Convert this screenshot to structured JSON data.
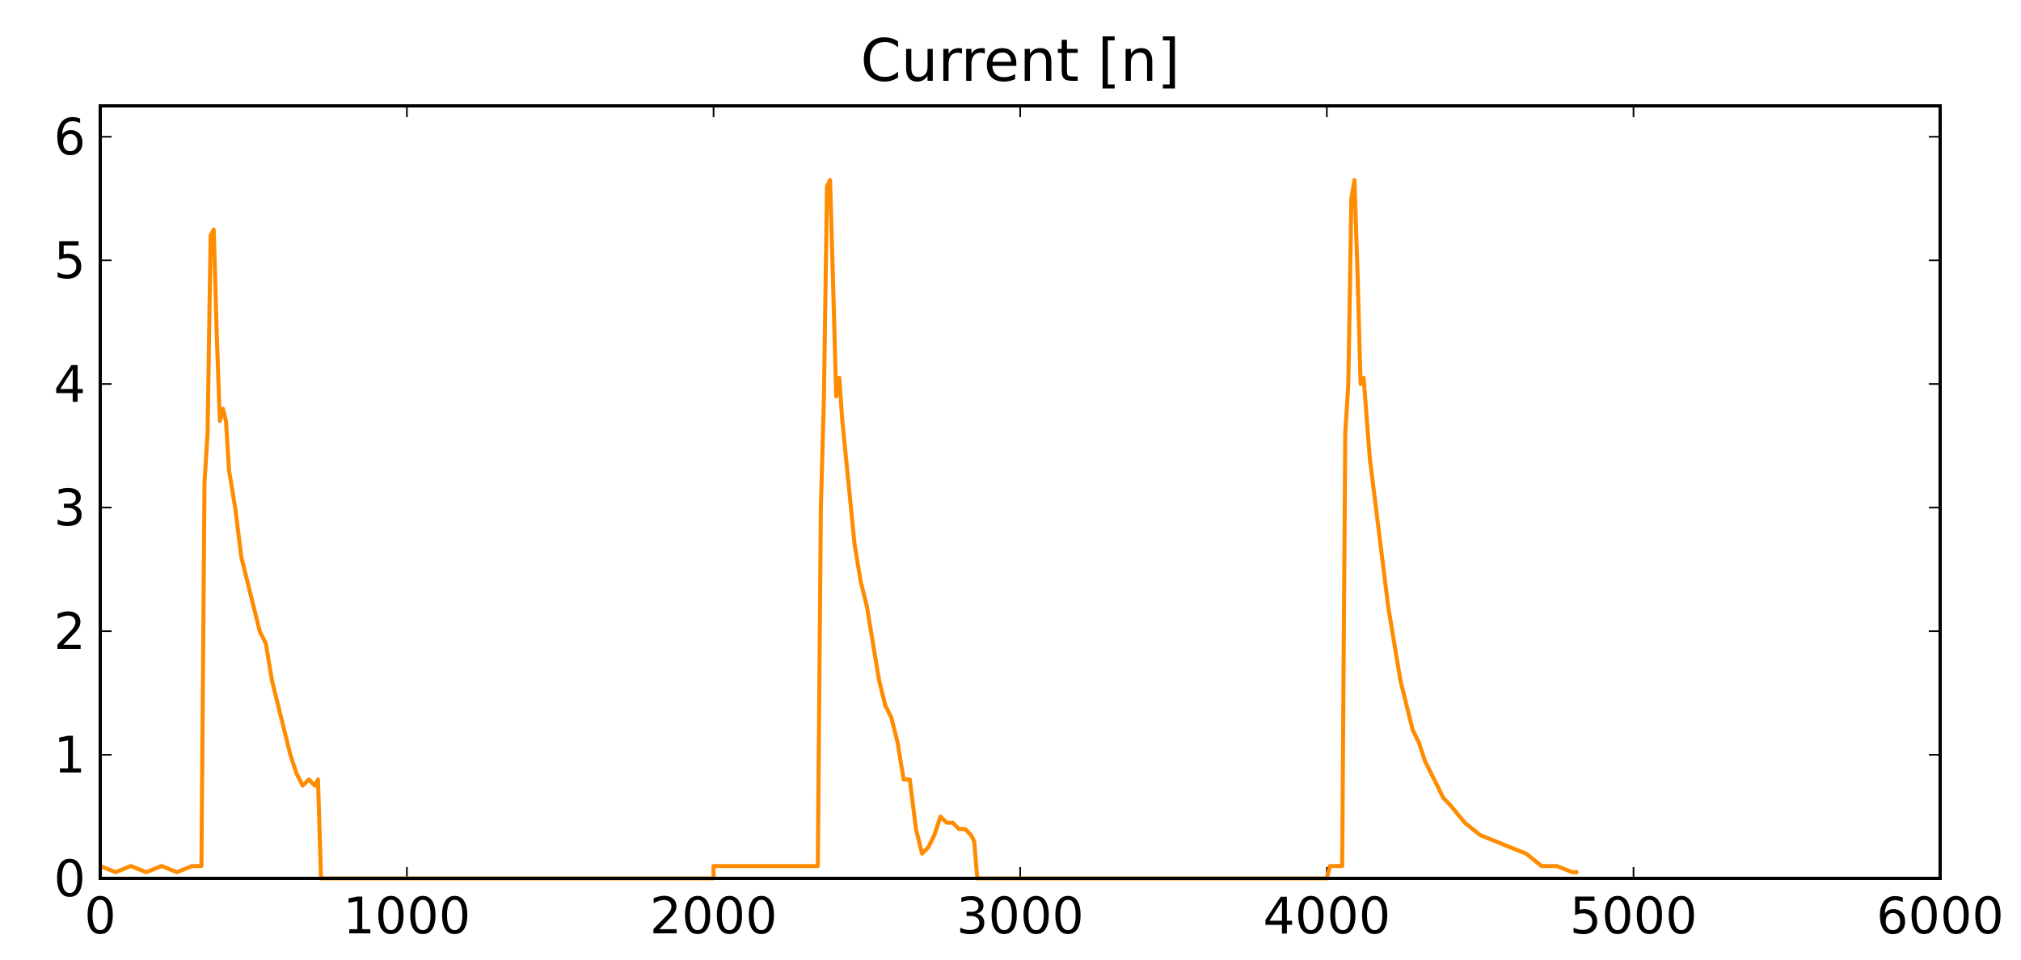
{
  "chart_data": {
    "type": "line",
    "title": "Current [n]",
    "series": [
      {
        "color": "#ff8c00",
        "x": [
          0,
          50,
          100,
          150,
          200,
          250,
          300,
          330,
          340,
          350,
          360,
          370,
          380,
          390,
          400,
          410,
          420,
          440,
          460,
          480,
          500,
          520,
          540,
          560,
          580,
          600,
          620,
          640,
          660,
          680,
          700,
          710,
          720,
          2000,
          2000,
          2100,
          2200,
          2300,
          2340,
          2350,
          2360,
          2370,
          2380,
          2390,
          2400,
          2410,
          2420,
          2440,
          2460,
          2480,
          2500,
          2520,
          2540,
          2560,
          2580,
          2600,
          2620,
          2640,
          2660,
          2680,
          2700,
          2720,
          2740,
          2760,
          2780,
          2800,
          2820,
          2840,
          2850,
          2860,
          4000,
          4010,
          4050,
          4060,
          4070,
          4080,
          4090,
          4100,
          4110,
          4120,
          4140,
          4160,
          4180,
          4200,
          4220,
          4240,
          4260,
          4280,
          4300,
          4320,
          4340,
          4360,
          4380,
          4400,
          4450,
          4500,
          4550,
          4600,
          4650,
          4700,
          4750,
          4800,
          4820
        ],
        "values": [
          0.1,
          0.05,
          0.1,
          0.05,
          0.1,
          0.05,
          0.1,
          0.1,
          3.2,
          3.6,
          5.2,
          5.25,
          4.4,
          3.7,
          3.8,
          3.7,
          3.3,
          3.0,
          2.6,
          2.4,
          2.2,
          2.0,
          1.9,
          1.6,
          1.4,
          1.2,
          1.0,
          0.85,
          0.75,
          0.8,
          0.75,
          0.8,
          0,
          0,
          0.1,
          0.1,
          0.1,
          0.1,
          0.1,
          3.0,
          3.9,
          5.6,
          5.65,
          4.8,
          3.9,
          4.05,
          3.7,
          3.2,
          2.7,
          2.4,
          2.2,
          1.9,
          1.6,
          1.4,
          1.3,
          1.1,
          0.8,
          0.8,
          0.4,
          0.2,
          0.25,
          0.35,
          0.5,
          0.45,
          0.45,
          0.4,
          0.4,
          0.35,
          0.3,
          0,
          0,
          0.1,
          0.1,
          3.6,
          4.0,
          5.5,
          5.65,
          4.9,
          4.0,
          4.05,
          3.4,
          3.0,
          2.6,
          2.2,
          1.9,
          1.6,
          1.4,
          1.2,
          1.1,
          0.95,
          0.85,
          0.75,
          0.65,
          0.6,
          0.45,
          0.35,
          0.3,
          0.25,
          0.2,
          0.1,
          0.1,
          0.05,
          0.05
        ]
      }
    ],
    "xlim": [
      0,
      6000
    ],
    "xticks": [
      0,
      1000,
      2000,
      3000,
      4000,
      5000,
      6000
    ],
    "ylim": [
      0,
      6.25
    ],
    "yticks": [
      0,
      1,
      2,
      3,
      4,
      5,
      6
    ],
    "grid": false
  }
}
